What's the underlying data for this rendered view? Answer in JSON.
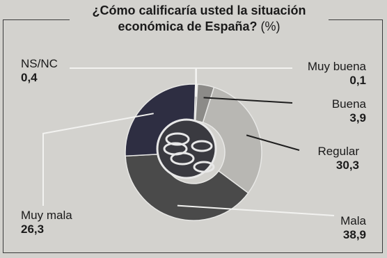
{
  "chart_data": {
    "type": "pie",
    "donut": true,
    "title": "¿Cómo calificaría usted la situación económica de España?",
    "unit": "(%)",
    "labels": [
      "Muy buena",
      "Buena",
      "Regular",
      "Mala",
      "Muy mala",
      "NS/NC"
    ],
    "values": [
      0.1,
      3.9,
      30.3,
      38.9,
      26.3,
      0.4
    ],
    "value_labels": [
      "0,1",
      "3,9",
      "30,3",
      "38,9",
      "26,3",
      "0,4"
    ],
    "colors": [
      "#5a5a5a",
      "#8c8b88",
      "#b8b7b3",
      "#4a4a4a",
      "#2e2e42",
      "#5a5a5a"
    ],
    "center_icon": "coins-icon"
  }
}
